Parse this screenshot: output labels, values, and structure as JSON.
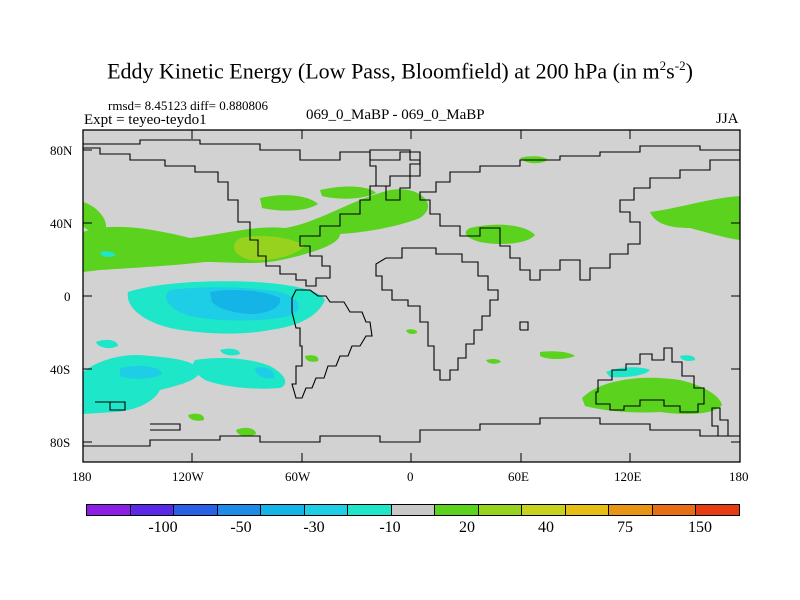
{
  "title": {
    "text": "Eddy Kinetic Energy (Low Pass, Bloomfield) at 200 hPa (in m",
    "sup1": "2",
    "mid": "s",
    "sup2": "-2",
    "close": ")"
  },
  "stats": "rmsd= 8.45123 diff= 0.880806",
  "expt": "Expt = teyeo-teydo1",
  "subtitle": "069_0_MaBP - 069_0_MaBP",
  "season": "JJA",
  "map": {
    "background_color": "#d2d2d2",
    "coast_color": "#000000",
    "y_ticks": [
      "80N",
      "40N",
      "0",
      "40S",
      "80S"
    ],
    "x_ticks": [
      "180",
      "120W",
      "60W",
      "0",
      "60E",
      "120E",
      "180"
    ]
  },
  "colorbar": {
    "colors": [
      "#8c1ee6",
      "#5a28e6",
      "#2860e6",
      "#1e8ce6",
      "#14b4e6",
      "#1ecde6",
      "#1ee6c8",
      "#c8c8c8",
      "#5ad21e",
      "#96d21e",
      "#c8d21e",
      "#e6be14",
      "#e69614",
      "#e66e14",
      "#e63c14"
    ],
    "labels": [
      "-100",
      "-50",
      "-30",
      "-10",
      "20",
      "40",
      "75",
      "150"
    ]
  },
  "chart_data": {
    "type": "contour_map",
    "title": "Eddy Kinetic Energy (Low Pass, Bloomfield) at 200 hPa (in m2s-2)",
    "variable": "Eddy Kinetic Energy difference",
    "units": "m2s-2",
    "level_hPa": 200,
    "season": "JJA",
    "rmsd": 8.45123,
    "diff": 0.880806,
    "x_range_deg": [
      -180,
      180
    ],
    "y_range_deg": [
      -90,
      90
    ],
    "contour_levels": [
      -100,
      -50,
      -30,
      -10,
      20,
      40,
      75,
      150
    ],
    "features": [
      {
        "region": "tropical east Pacific",
        "lon": [
          -155,
          -52
        ],
        "lat": [
          -20,
          5
        ],
        "sign": "negative",
        "approx": -30
      },
      {
        "region": "south Pacific",
        "lon": [
          -175,
          -100
        ],
        "lat": [
          -65,
          -30
        ],
        "sign": "negative",
        "approx": -15
      },
      {
        "region": "north Pacific / North America jet",
        "lon": [
          -180,
          -30
        ],
        "lat": [
          20,
          45
        ],
        "sign": "positive",
        "approx": 25
      },
      {
        "region": "southern Australia / Southern Ocean",
        "lon": [
          95,
          160
        ],
        "lat": [
          -65,
          -45
        ],
        "sign": "positive",
        "approx": 20
      },
      {
        "region": "south Indian Ocean",
        "lon": [
          115,
          130
        ],
        "lat": [
          -42,
          -36
        ],
        "sign": "negative",
        "approx": -15
      },
      {
        "region": "northwest Pacific",
        "lon": [
          130,
          180
        ],
        "lat": [
          25,
          50
        ],
        "sign": "positive",
        "approx": 20
      }
    ]
  }
}
